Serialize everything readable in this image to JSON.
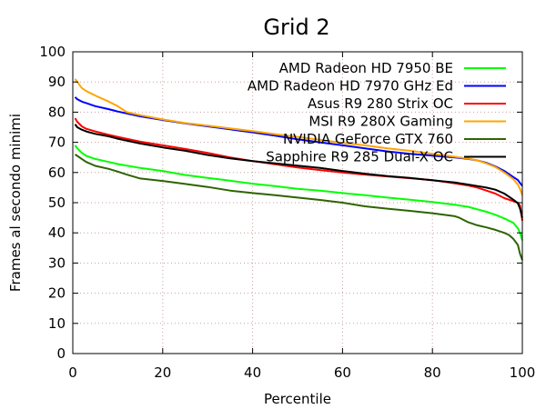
{
  "chart_data": {
    "type": "line",
    "title": "Grid 2",
    "xlabel": "Percentile",
    "ylabel": "Frames al secondo minimi",
    "xlim": [
      0,
      100
    ],
    "ylim": [
      0,
      100
    ],
    "x_ticks": [
      "0",
      "20",
      "40",
      "60",
      "80",
      "100"
    ],
    "y_ticks": [
      "0",
      "10",
      "20",
      "30",
      "40",
      "50",
      "60",
      "70",
      "80",
      "90",
      "100"
    ],
    "grid": true,
    "legend_position": "top-right",
    "series": [
      {
        "name": "AMD Radeon HD 7950 BE",
        "color": "#00ff00",
        "points": [
          [
            0.5,
            69
          ],
          [
            1,
            68
          ],
          [
            2,
            66.5
          ],
          [
            3,
            65.5
          ],
          [
            5,
            64.5
          ],
          [
            8,
            63.5
          ],
          [
            10,
            62.8
          ],
          [
            15,
            61.5
          ],
          [
            20,
            60.5
          ],
          [
            25,
            59.2
          ],
          [
            30,
            58.2
          ],
          [
            35,
            57.3
          ],
          [
            40,
            56.3
          ],
          [
            45,
            55.5
          ],
          [
            50,
            54.6
          ],
          [
            55,
            54
          ],
          [
            60,
            53.2
          ],
          [
            65,
            52.5
          ],
          [
            70,
            51.7
          ],
          [
            75,
            51
          ],
          [
            80,
            50.2
          ],
          [
            85,
            49.3
          ],
          [
            88,
            48.6
          ],
          [
            90,
            47.8
          ],
          [
            92,
            47
          ],
          [
            94,
            46
          ],
          [
            96,
            44.8
          ],
          [
            98,
            43.3
          ],
          [
            99,
            41.5
          ],
          [
            99.5,
            40
          ],
          [
            100,
            37.5
          ]
        ]
      },
      {
        "name": "AMD Radeon HD 7970 GHz Ed",
        "color": "#0000ff",
        "points": [
          [
            0.5,
            85
          ],
          [
            1,
            84.3
          ],
          [
            2,
            83.5
          ],
          [
            3,
            83
          ],
          [
            5,
            82
          ],
          [
            8,
            81
          ],
          [
            10,
            80.2
          ],
          [
            15,
            78.6
          ],
          [
            20,
            77.4
          ],
          [
            25,
            76.3
          ],
          [
            30,
            75.3
          ],
          [
            35,
            74.3
          ],
          [
            40,
            73.3
          ],
          [
            45,
            72.2
          ],
          [
            50,
            71
          ],
          [
            55,
            70
          ],
          [
            60,
            69
          ],
          [
            65,
            68
          ],
          [
            70,
            67
          ],
          [
            75,
            66.2
          ],
          [
            80,
            65.6
          ],
          [
            85,
            65
          ],
          [
            88,
            64.5
          ],
          [
            90,
            64
          ],
          [
            92,
            63.2
          ],
          [
            94,
            62
          ],
          [
            96,
            60.5
          ],
          [
            98,
            58.5
          ],
          [
            99,
            57.5
          ],
          [
            99.5,
            56.5
          ],
          [
            100,
            55.5
          ]
        ]
      },
      {
        "name": "Asus R9 280 Strix OC",
        "color": "#ff0000",
        "points": [
          [
            0.5,
            78
          ],
          [
            1,
            76.8
          ],
          [
            2,
            75.3
          ],
          [
            3,
            74.5
          ],
          [
            5,
            73.6
          ],
          [
            8,
            72.5
          ],
          [
            10,
            71.8
          ],
          [
            15,
            70.2
          ],
          [
            20,
            69
          ],
          [
            25,
            67.8
          ],
          [
            30,
            66.5
          ],
          [
            35,
            65
          ],
          [
            40,
            63.8
          ],
          [
            45,
            62.7
          ],
          [
            50,
            61.7
          ],
          [
            55,
            60.8
          ],
          [
            60,
            60
          ],
          [
            65,
            59.3
          ],
          [
            70,
            58.7
          ],
          [
            75,
            58.1
          ],
          [
            80,
            57.5
          ],
          [
            85,
            56.4
          ],
          [
            88,
            55.7
          ],
          [
            90,
            55
          ],
          [
            92,
            54
          ],
          [
            94,
            53
          ],
          [
            96,
            51.5
          ],
          [
            98,
            50.5
          ],
          [
            99,
            50
          ],
          [
            99.5,
            49
          ],
          [
            100,
            44
          ]
        ]
      },
      {
        "name": "MSI R9 280X Gaming",
        "color": "#ffa500",
        "points": [
          [
            0.5,
            91
          ],
          [
            1,
            90
          ],
          [
            2,
            88
          ],
          [
            3,
            87
          ],
          [
            5,
            85.5
          ],
          [
            8,
            83.5
          ],
          [
            10,
            82
          ],
          [
            12,
            80
          ],
          [
            15,
            79
          ],
          [
            20,
            77.6
          ],
          [
            25,
            76.4
          ],
          [
            30,
            75.5
          ],
          [
            35,
            74.6
          ],
          [
            40,
            73.7
          ],
          [
            45,
            72.7
          ],
          [
            50,
            71.8
          ],
          [
            55,
            70.8
          ],
          [
            60,
            69.8
          ],
          [
            65,
            69
          ],
          [
            70,
            68
          ],
          [
            75,
            67.2
          ],
          [
            80,
            66.2
          ],
          [
            85,
            65.2
          ],
          [
            88,
            64.6
          ],
          [
            90,
            64
          ],
          [
            92,
            63
          ],
          [
            94,
            61.8
          ],
          [
            96,
            60
          ],
          [
            98,
            57.8
          ],
          [
            99,
            56
          ],
          [
            99.5,
            54.5
          ],
          [
            100,
            52.5
          ]
        ]
      },
      {
        "name": "NVIDIA GeForce GTX 760",
        "color": "#2d6400",
        "points": [
          [
            0.5,
            66
          ],
          [
            1,
            65.5
          ],
          [
            2,
            64.5
          ],
          [
            3,
            63.5
          ],
          [
            5,
            62.2
          ],
          [
            8,
            61.2
          ],
          [
            10,
            60.3
          ],
          [
            12,
            59.3
          ],
          [
            15,
            58
          ],
          [
            20,
            57.2
          ],
          [
            25,
            56.2
          ],
          [
            30,
            55.2
          ],
          [
            35,
            54
          ],
          [
            40,
            53.2
          ],
          [
            45,
            52.5
          ],
          [
            50,
            51.7
          ],
          [
            55,
            50.9
          ],
          [
            60,
            50
          ],
          [
            65,
            48.8
          ],
          [
            70,
            48
          ],
          [
            75,
            47.3
          ],
          [
            80,
            46.5
          ],
          [
            85,
            45.5
          ],
          [
            86,
            45
          ],
          [
            88,
            43.5
          ],
          [
            90,
            42.5
          ],
          [
            92,
            41.8
          ],
          [
            94,
            41
          ],
          [
            96,
            40
          ],
          [
            97,
            39.3
          ],
          [
            98,
            38
          ],
          [
            99,
            36
          ],
          [
            99.5,
            33
          ],
          [
            100,
            31
          ]
        ]
      },
      {
        "name": "Sapphire R9 285 Dual-X OC",
        "color": "#000000",
        "points": [
          [
            0.5,
            76
          ],
          [
            1,
            75
          ],
          [
            2,
            74.2
          ],
          [
            3,
            73.6
          ],
          [
            5,
            72.8
          ],
          [
            8,
            72
          ],
          [
            10,
            71.2
          ],
          [
            15,
            69.6
          ],
          [
            20,
            68.3
          ],
          [
            25,
            67.2
          ],
          [
            30,
            65.8
          ],
          [
            35,
            64.7
          ],
          [
            40,
            63.8
          ],
          [
            45,
            63
          ],
          [
            50,
            62.3
          ],
          [
            55,
            61.5
          ],
          [
            60,
            60.5
          ],
          [
            65,
            59.6
          ],
          [
            70,
            58.8
          ],
          [
            75,
            58.2
          ],
          [
            80,
            57.4
          ],
          [
            85,
            56.7
          ],
          [
            88,
            56
          ],
          [
            90,
            55.5
          ],
          [
            92,
            55
          ],
          [
            94,
            54.3
          ],
          [
            96,
            53
          ],
          [
            98,
            51
          ],
          [
            99,
            49.8
          ],
          [
            99.5,
            48
          ],
          [
            100,
            45
          ]
        ]
      }
    ]
  }
}
